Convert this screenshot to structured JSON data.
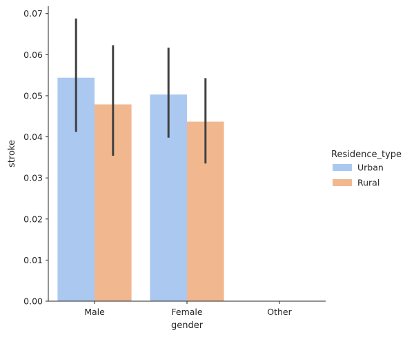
{
  "chart_data": {
    "type": "bar",
    "xlabel": "gender",
    "ylabel": "stroke",
    "categories": [
      "Male",
      "Female",
      "Other"
    ],
    "ylim": [
      0,
      0.0718
    ],
    "yticks": [
      0.0,
      0.01,
      0.02,
      0.03,
      0.04,
      0.05,
      0.06,
      0.07
    ],
    "ytick_labels": [
      "0.00",
      "0.01",
      "0.02",
      "0.03",
      "0.04",
      "0.05",
      "0.06",
      "0.07"
    ],
    "grid": false,
    "legend": {
      "title": "Residence_type",
      "placement": "right"
    },
    "series": [
      {
        "name": "Urban",
        "color": "#abc9f0",
        "values": [
          0.0544,
          0.0503,
          0
        ],
        "ci_low": [
          0.0412,
          0.0398,
          null
        ],
        "ci_high": [
          0.0688,
          0.0617,
          null
        ]
      },
      {
        "name": "Rural",
        "color": "#f1b88f",
        "values": [
          0.0479,
          0.0437,
          0
        ],
        "ci_low": [
          0.0354,
          0.0335,
          null
        ],
        "ci_high": [
          0.0623,
          0.0543,
          null
        ]
      }
    ],
    "errorbar_color": "#404040"
  }
}
